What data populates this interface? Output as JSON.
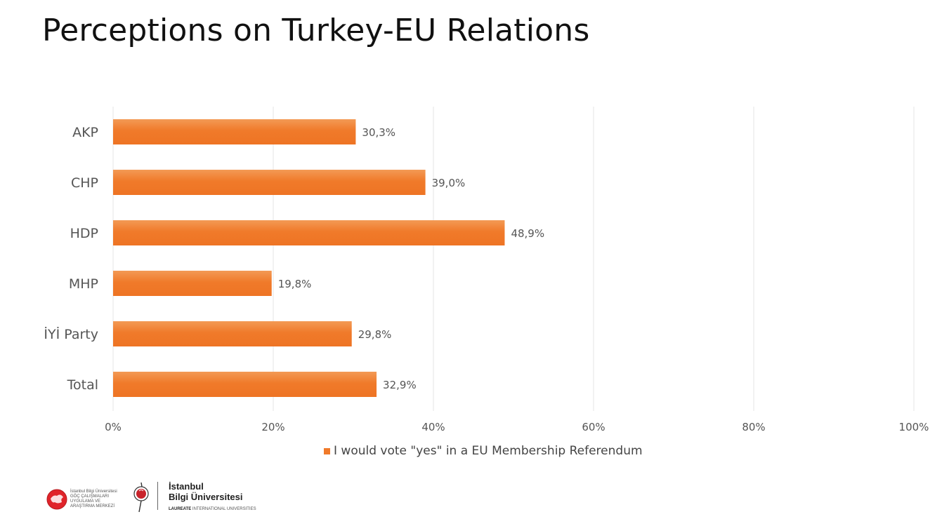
{
  "slide": {
    "title": "Perceptions on Turkey-EU Relations"
  },
  "colors": {
    "bar": "#f07a2a",
    "bar_light": "#f39a55",
    "grid": "#e6e6e6",
    "text": "#555555"
  },
  "chart_data": {
    "type": "bar",
    "orientation": "horizontal",
    "categories": [
      "AKP",
      "CHP",
      "HDP",
      "MHP",
      "İYİ Party",
      "Total"
    ],
    "series": [
      {
        "name": "I would vote \"yes\" in a EU Membership Referendum",
        "values": [
          30.3,
          39.0,
          48.9,
          19.8,
          29.8,
          32.9
        ],
        "labels": [
          "30,3%",
          "39,0%",
          "48,9%",
          "19,8%",
          "29,8%",
          "32,9%"
        ]
      }
    ],
    "xlim": [
      0,
      100
    ],
    "xticks": [
      0,
      20,
      40,
      60,
      80,
      100
    ],
    "xtick_labels": [
      "0%",
      "20%",
      "40%",
      "60%",
      "80%",
      "100%"
    ],
    "grid": true,
    "legend_position": "bottom"
  },
  "footer": {
    "logo1_text": "İstanbul Bilgi Üniversitesi\nGÖÇ ÇALIŞMALARI\nUYGULAMA VE\nARAŞTIRMA MERKEZİ",
    "university_name": "İstanbul\nBilgi Üniversitesi",
    "laureate_bold": "LAUREATE",
    "laureate_rest": "INTERNATIONAL UNIVERSITIES"
  }
}
